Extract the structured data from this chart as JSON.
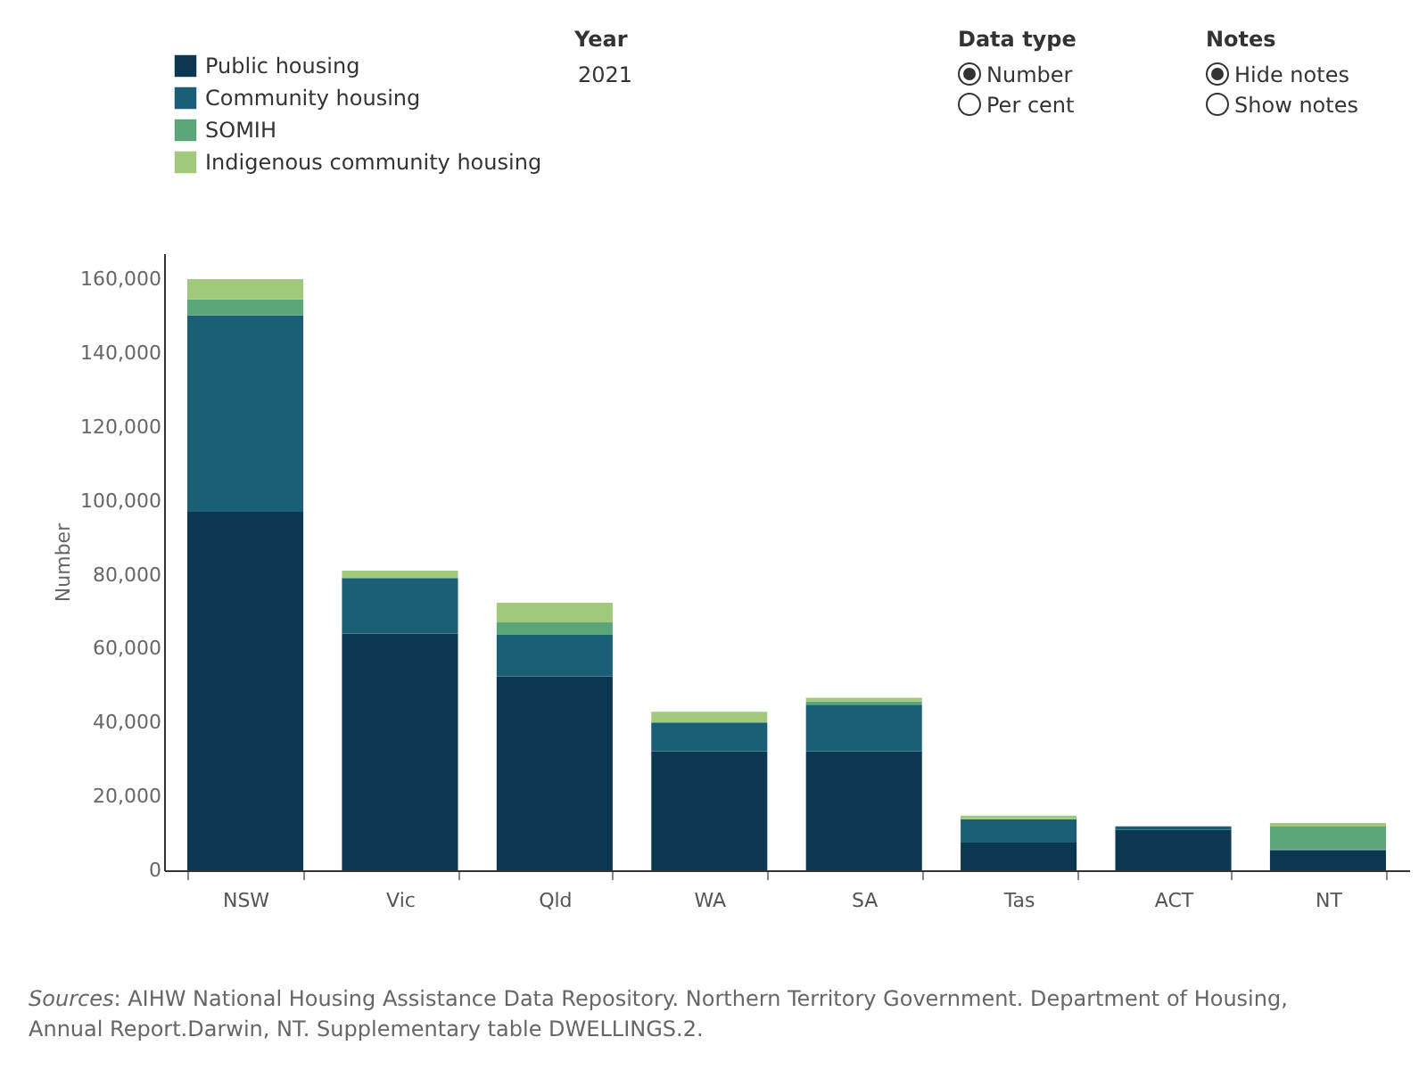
{
  "chart_data": {
    "type": "bar",
    "stacked": true,
    "ylabel": "Number",
    "categories": [
      "NSW",
      "Vic",
      "Qld",
      "WA",
      "SA",
      "Tas",
      "ACT",
      "NT"
    ],
    "series": [
      {
        "name": "Public housing",
        "color": "#0b3750",
        "values": [
          97000,
          64100,
          52500,
          32200,
          32200,
          7500,
          10900,
          5400
        ]
      },
      {
        "name": "Community housing",
        "color": "#1a5f75",
        "values": [
          53200,
          15000,
          11200,
          7800,
          12600,
          6300,
          1000,
          200
        ]
      },
      {
        "name": "SOMIH",
        "color": "#5ba57a",
        "values": [
          4400,
          0,
          3400,
          0,
          900,
          0,
          0,
          6200
        ]
      },
      {
        "name": "Indigenous community housing",
        "color": "#a1c97c",
        "values": [
          5400,
          2000,
          5300,
          2900,
          1000,
          1000,
          0,
          1000
        ]
      }
    ],
    "ylim": [
      0,
      167000
    ],
    "yticks": [
      {
        "value": 0,
        "label": "0"
      },
      {
        "value": 20000,
        "label": "20,000"
      },
      {
        "value": 40000,
        "label": "40,000"
      },
      {
        "value": 60000,
        "label": "60,000"
      },
      {
        "value": 80000,
        "label": "80,000"
      },
      {
        "value": 100000,
        "label": "100,000"
      },
      {
        "value": 120000,
        "label": "120,000"
      },
      {
        "value": 140000,
        "label": "140,000"
      },
      {
        "value": 160000,
        "label": "160,000"
      }
    ],
    "grid": false,
    "legend": "top left",
    "annotations": [
      "Year",
      "2021",
      "Data type",
      "Number",
      "Per cent",
      "Notes",
      "Hide notes",
      "Show notes",
      "Sources: AIHW National Housing Assistance Data Repository. Northern Territory Government. Department of Housing, Annual Report.Darwin, NT. Supplementary table DWELLINGS.2."
    ]
  }
}
